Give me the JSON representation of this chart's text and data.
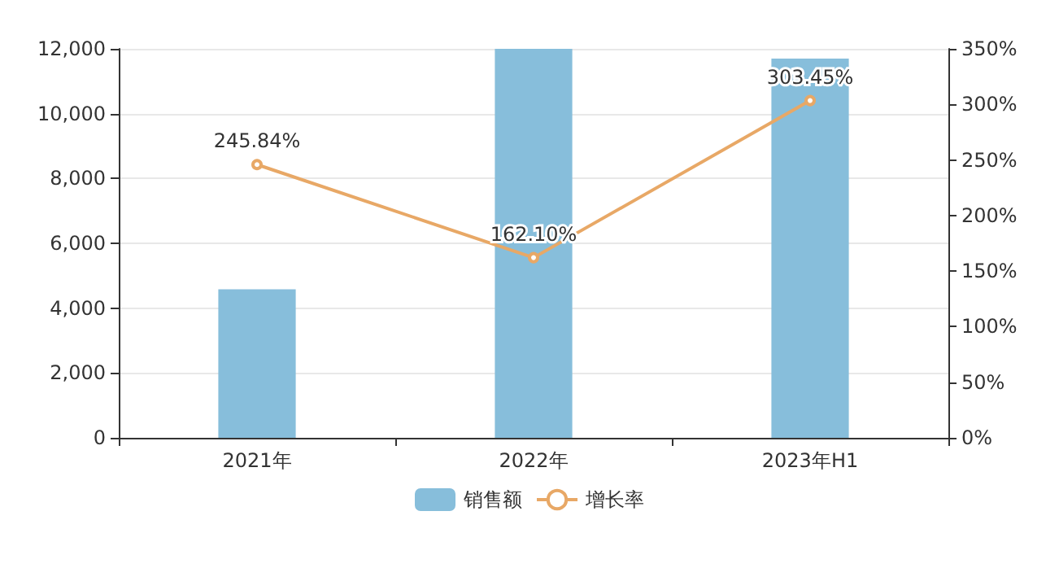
{
  "chart_data": {
    "type": "bar",
    "categories": [
      "2021年",
      "2022年",
      "2023年H1"
    ],
    "series": [
      {
        "name": "销售额",
        "color": "#87bedb",
        "values": [
          4580,
          12000,
          11700
        ]
      },
      {
        "name": "增长率",
        "type": "line",
        "axis": "y2",
        "color": "#e8a866",
        "values": [
          245.84,
          162.1,
          303.45
        ],
        "value_labels": [
          "245.84%",
          "162.10%",
          "303.45%"
        ]
      }
    ],
    "ylim": [
      0,
      12000
    ],
    "yticks": [
      0,
      {
        "value": 2000,
        "label": "2,000"
      },
      {
        "value": 4000,
        "label": "4,000"
      },
      {
        "value": 6000,
        "label": "6,000"
      },
      {
        "value": 8000,
        "label": "8,000"
      },
      {
        "value": 10000,
        "label": "10,000"
      },
      {
        "value": 12000,
        "label": "12,000"
      }
    ],
    "y2lim": [
      0,
      350
    ],
    "y2ticks": [
      {
        "value": 0,
        "label": "0%"
      },
      {
        "value": 50,
        "label": "50%"
      },
      {
        "value": 100,
        "label": "100%"
      },
      {
        "value": 150,
        "label": "150%"
      },
      {
        "value": 200,
        "label": "200%"
      },
      {
        "value": 250,
        "label": "250%"
      },
      {
        "value": 300,
        "label": "300%"
      },
      {
        "value": 350,
        "label": "350%"
      }
    ],
    "grid": "y",
    "legend": "bottom",
    "marker": "circle"
  }
}
